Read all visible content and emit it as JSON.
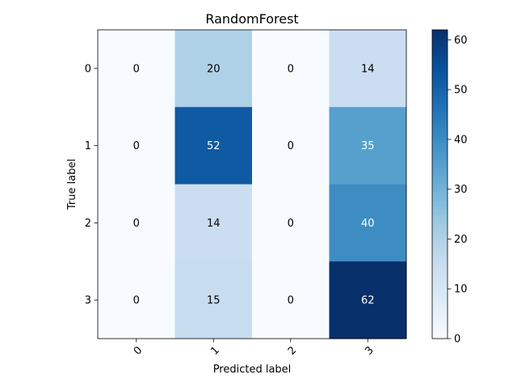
{
  "chart_data": {
    "type": "heatmap",
    "title": "RandomForest",
    "xlabel": "Predicted label",
    "ylabel": "True label",
    "x_categories": [
      "0",
      "1",
      "2",
      "3"
    ],
    "y_categories": [
      "0",
      "1",
      "2",
      "3"
    ],
    "values": [
      [
        0,
        20,
        0,
        14
      ],
      [
        0,
        52,
        0,
        35
      ],
      [
        0,
        14,
        0,
        40
      ],
      [
        0,
        15,
        0,
        62
      ]
    ],
    "colormap": "Blues",
    "vmin": 0,
    "vmax": 62,
    "colorbar_ticks": [
      0,
      10,
      20,
      30,
      40,
      50,
      60
    ],
    "cell_text_colors": {
      "dark": "#000000",
      "light": "#ffffff"
    },
    "grid": false,
    "legend": "colorbar-right"
  }
}
